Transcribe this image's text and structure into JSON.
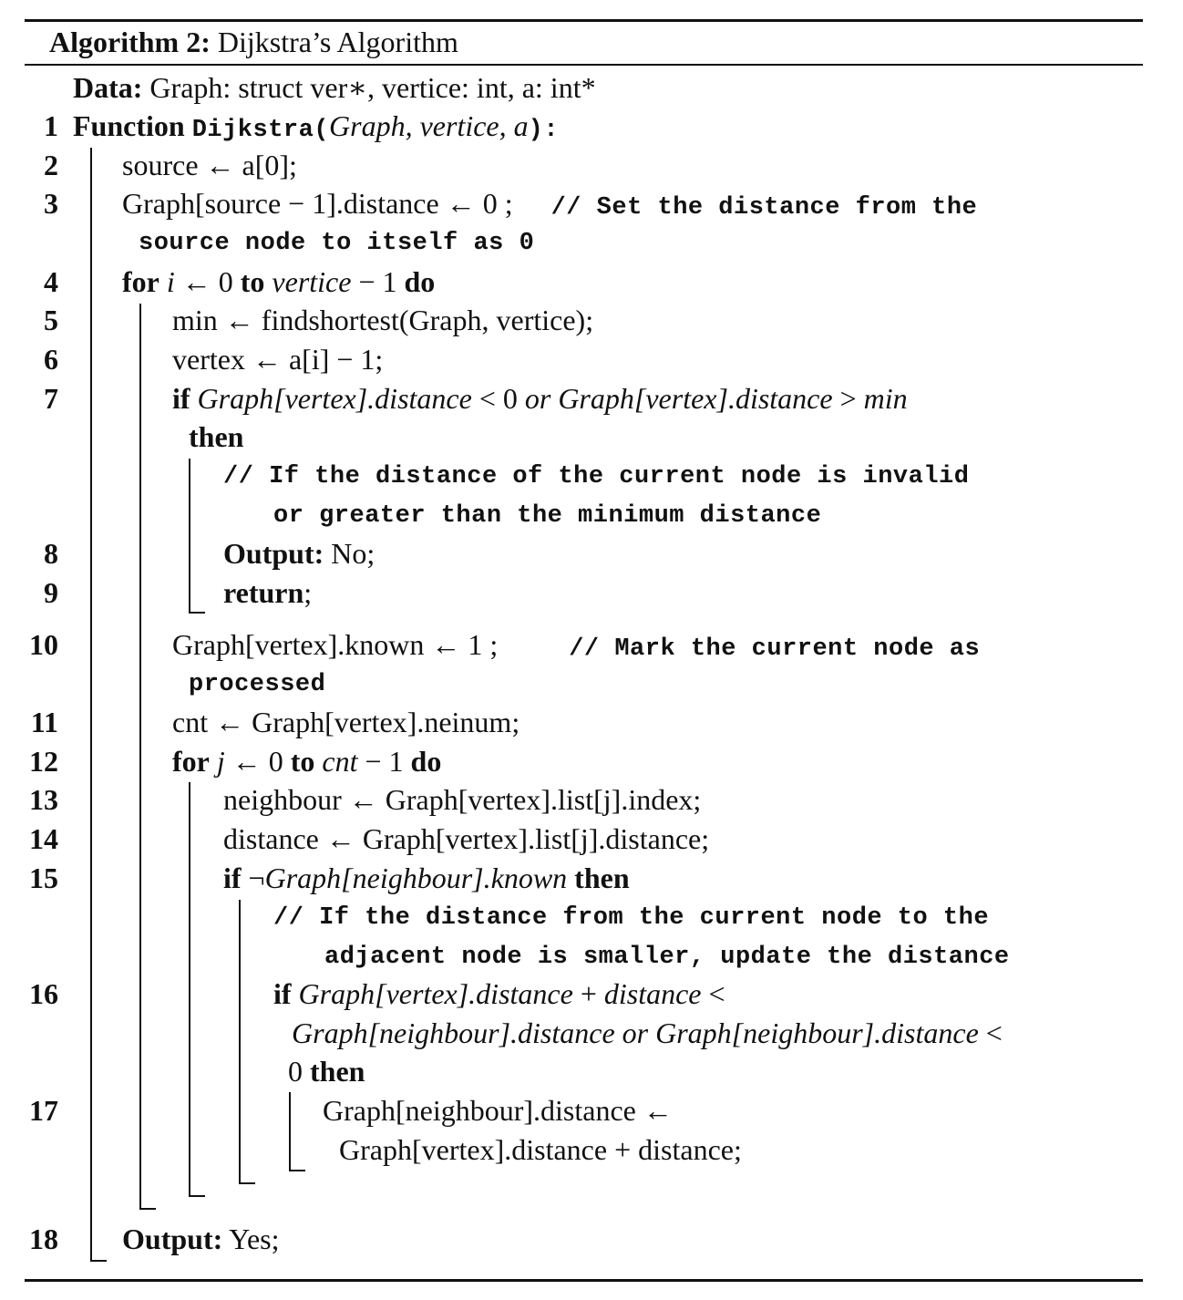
{
  "algorithm": {
    "label": "Algorithm 2:",
    "title": "Dijkstra’s Algorithm"
  },
  "data_line": {
    "keyword": "Data:",
    "text": "Graph: struct ver∗, vertice: int, a: int*"
  },
  "line_numbers": [
    "1",
    "2",
    "3",
    "4",
    "5",
    "6",
    "7",
    "8",
    "9",
    "10",
    "11",
    "12",
    "13",
    "14",
    "15",
    "16",
    "17",
    "18"
  ],
  "function_line": {
    "keyword": "Function",
    "name": "Dijkstra(",
    "params": "Graph, vertice, a",
    "end": "):"
  },
  "lines": {
    "l2": "source ← a[0];",
    "l3": "Graph[source − 1].distance ← 0 ;",
    "l3_comment_a": "// Set the distance from the",
    "l3_comment_b": "source node to itself as 0",
    "l4_for": "for",
    "l4_i": "i",
    "l4_mid": " ← 0 ",
    "l4_to": "to",
    "l4_limit": "vertice",
    "l4_rest": " − 1 ",
    "l4_do": "do",
    "l5": "min ← findshortest(Graph, vertice);",
    "l6": "vertex ← a[i] − 1;",
    "l7_if": "if",
    "l7_cond_a": "Graph[vertex].distance",
    "l7_lt": " < 0 ",
    "l7_or": "or",
    "l7_cond_b": "Graph[vertex].distance",
    "l7_gt": " > ",
    "l7_min": "min",
    "l7_then": "then",
    "l7_comment_a": "// If the distance of the current node is invalid",
    "l7_comment_b": "or greater than the minimum distance",
    "l8_kw": "Output:",
    "l8_val": "No;",
    "l9_kw": "return",
    "l9_end": ";",
    "l10": "Graph[vertex].known ← 1 ;",
    "l10_comment_a": "// Mark the current node as",
    "l10_comment_b": "processed",
    "l11": "cnt ← Graph[vertex].neinum;",
    "l12_for": "for",
    "l12_j": "j",
    "l12_mid": " ← 0 ",
    "l12_to": "to",
    "l12_limit": "cnt",
    "l12_rest": " − 1 ",
    "l12_do": "do",
    "l13": "neighbour ← Graph[vertex].list[j].index;",
    "l14": "distance ← Graph[vertex].list[j].distance;",
    "l15_if": "if",
    "l15_not": "¬",
    "l15_cond": "Graph[neighbour].known",
    "l15_then": "then",
    "l15_comment_a": "// If the distance from the current node to the",
    "l15_comment_b": "adjacent node is smaller, update the distance",
    "l16_if": "if",
    "l16_cond_a": "Graph[vertex].distance",
    "l16_plus": " + ",
    "l16_dist": "distance",
    "l16_lt": " <",
    "l16_cond_b": "Graph[neighbour].distance or Graph[neighbour].distance",
    "l16_lt2": " <",
    "l16_zero": "0 ",
    "l16_then": "then",
    "l17_a": "Graph[neighbour].distance ←",
    "l17_b": "Graph[vertex].distance + distance;",
    "l18_kw": "Output:",
    "l18_val": "Yes;"
  }
}
